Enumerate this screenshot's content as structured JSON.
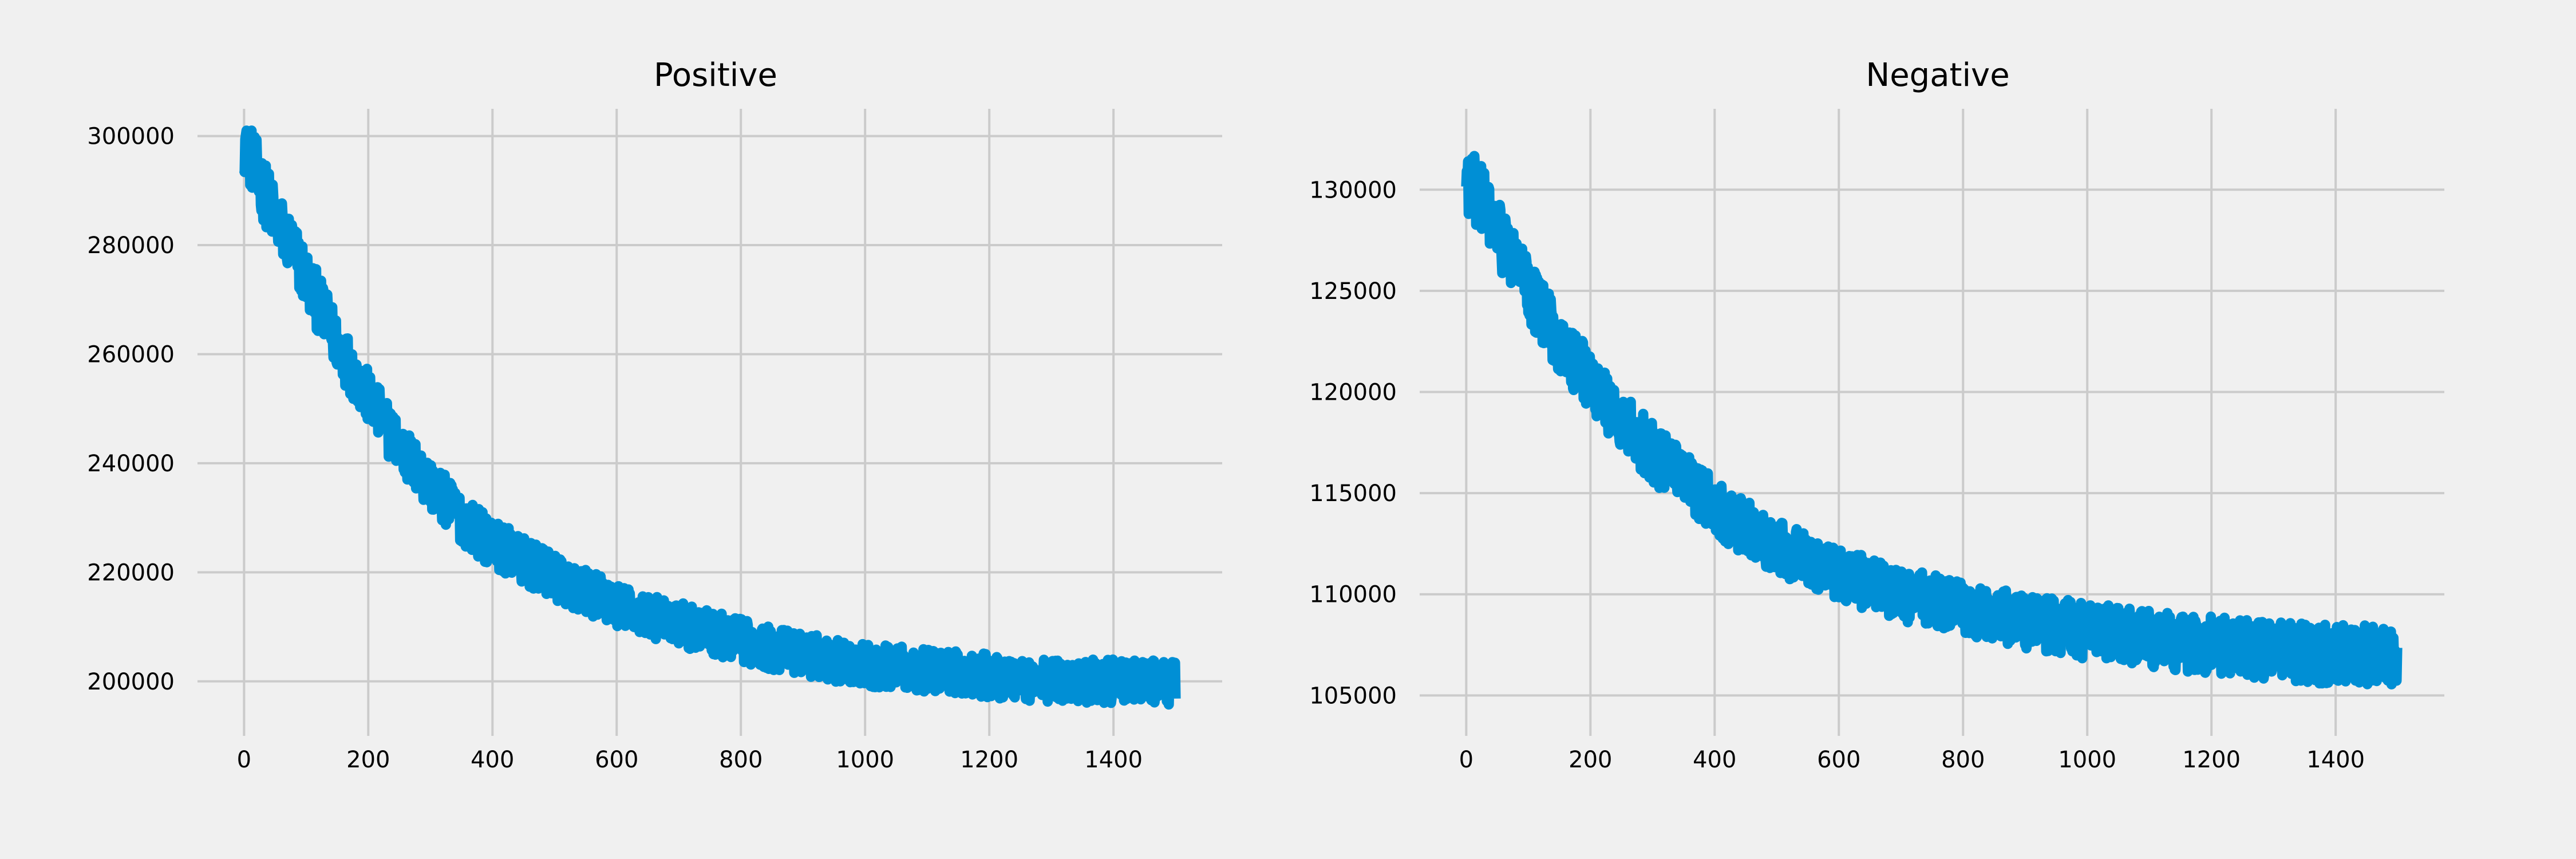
{
  "chart_data": [
    {
      "type": "line",
      "title": "Positive",
      "xlabel": "",
      "ylabel": "",
      "xlim": [
        -75,
        1575
      ],
      "ylim": [
        190000,
        305000
      ],
      "xticks": [
        0,
        200,
        400,
        600,
        800,
        1000,
        1200,
        1400
      ],
      "yticks": [
        200000,
        220000,
        240000,
        260000,
        280000,
        300000
      ],
      "grid": true,
      "color": "#008fd5",
      "series": [
        {
          "trend": {
            "x": [
              0,
              25,
              50,
              75,
              100,
              125,
              150,
              175,
              200,
              225,
              250,
              275,
              300,
              325,
              350,
              375,
              400,
              450,
              500,
              550,
              600,
              650,
              700,
              750,
              800,
              850,
              900,
              950,
              1000,
              1050,
              1100,
              1150,
              1200,
              1250,
              1300,
              1350,
              1400,
              1450,
              1500
            ],
            "y": [
              299500,
              292000,
              285000,
              280000,
              274000,
              268000,
              262000,
              257000,
              252000,
              247500,
              243000,
              239500,
              236000,
              233000,
              230000,
              227500,
              225500,
              222000,
              219000,
              216500,
              214000,
              212000,
              210500,
              209000,
              207500,
              206000,
              205000,
              204000,
              203000,
              202500,
              202000,
              201500,
              201000,
              200500,
              200000,
              200000,
              200000,
              200000,
              199500
            ]
          },
          "noise_amplitude": {
            "x": [
              0,
              200,
              400,
              600,
              1000,
              1500
            ],
            "y": [
              6000,
              5000,
              4500,
              4000,
              4000,
              4000
            ]
          },
          "min": 193000,
          "max": 301000
        }
      ]
    },
    {
      "type": "line",
      "title": "Negative",
      "xlabel": "",
      "ylabel": "",
      "xlim": [
        -75,
        1575
      ],
      "ylim": [
        103000,
        134000
      ],
      "xticks": [
        0,
        200,
        400,
        600,
        800,
        1000,
        1200,
        1400
      ],
      "yticks": [
        105000,
        110000,
        115000,
        120000,
        125000,
        130000
      ],
      "grid": true,
      "color": "#008fd5",
      "series": [
        {
          "trend": {
            "x": [
              0,
              25,
              50,
              75,
              100,
              125,
              150,
              175,
              200,
              225,
              250,
              275,
              300,
              325,
              350,
              375,
              400,
              450,
              500,
              550,
              600,
              650,
              700,
              750,
              800,
              850,
              900,
              950,
              1000,
              1050,
              1100,
              1150,
              1200,
              1250,
              1300,
              1350,
              1400,
              1450,
              1500
            ],
            "y": [
              130500,
              129500,
              128000,
              126500,
              125000,
              123800,
              122500,
              121500,
              120500,
              119500,
              118700,
              117800,
              117000,
              116300,
              115600,
              115000,
              114300,
              113300,
              112300,
              111700,
              111000,
              110500,
              110000,
              109700,
              109300,
              109000,
              108700,
              108400,
              108200,
              108000,
              107800,
              107600,
              107500,
              107300,
              107200,
              107100,
              107000,
              107000,
              106800
            ]
          },
          "noise_amplitude": {
            "x": [
              0,
              200,
              400,
              600,
              1000,
              1500
            ],
            "y": [
              1700,
              1500,
              1400,
              1300,
              1400,
              1500
            ]
          },
          "min": 104000,
          "max": 132800
        }
      ]
    }
  ]
}
